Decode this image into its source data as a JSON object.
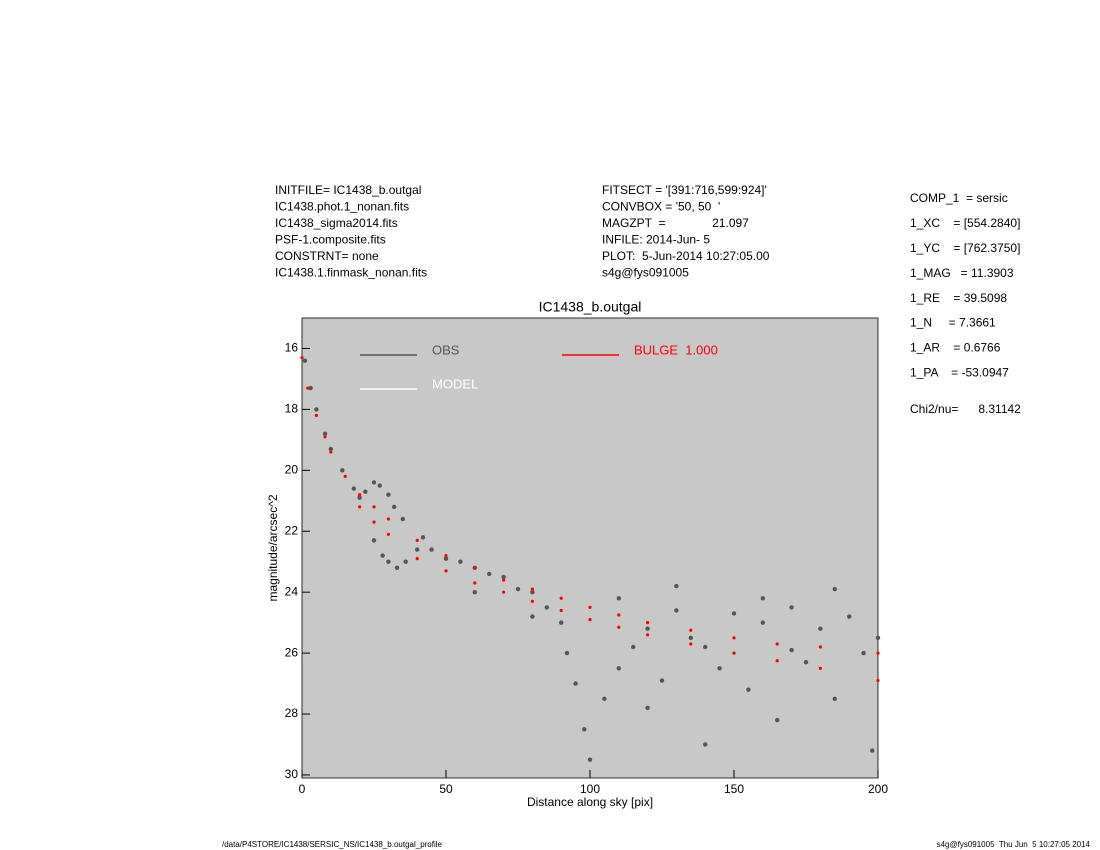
{
  "header": {
    "left": [
      "INITFILE= IC1438_b.outgal",
      "IC1438.phot.1_nonan.fits",
      "IC1438_sigma2014.fits",
      "PSF-1.composite.fits",
      "CONSTRNT= none",
      "IC1438.1.finmask_nonan.fits"
    ],
    "middle": [
      "FITSECT = '[391:716,599:924]'",
      "CONVBOX = '50, 50  '",
      "MAGZPT  =              21.097",
      "INFILE: 2014-Jun- 5",
      "PLOT:  5-Jun-2014 10:27:05.00",
      "s4g@fys091005"
    ],
    "params": [
      "COMP_1  = sersic",
      "1_XC    = [554.2840]",
      "1_YC    = [762.3750]",
      "1_MAG   = 11.3903",
      "1_RE    = 39.5098",
      "1_N     = 7.3661",
      "1_AR    = 0.6766",
      "1_PA    = -53.0947"
    ],
    "chi2": "Chi2/nu=      8.31142"
  },
  "footer": {
    "left": "/data/P4STORE/IC1438/SERSIC_NS/IC1438_b.outgal_profile",
    "right": "s4g@fys091005  Thu Jun  5 10:27:05 2014"
  },
  "chart_data": {
    "type": "scatter",
    "title": "IC1438_b.outgal",
    "xlabel": "Distance along sky [pix]",
    "ylabel": "magnitude/arcsec^2",
    "xlim": [
      0,
      200
    ],
    "ylim": [
      30.1,
      15
    ],
    "xticks": [
      0,
      50,
      100,
      150,
      200
    ],
    "yticks": [
      16,
      18,
      20,
      22,
      24,
      26,
      28,
      30
    ],
    "background": "#c8c8c8",
    "series": [
      {
        "name": "OBS",
        "color": "#555555",
        "x": [
          1,
          3,
          5,
          8,
          10,
          14,
          18,
          20,
          22,
          25,
          27,
          30,
          32,
          35,
          25,
          28,
          30,
          33,
          36,
          40,
          42,
          45,
          50,
          55,
          60,
          65,
          70,
          75,
          80,
          85,
          90,
          92,
          95,
          98,
          100,
          105,
          110,
          115,
          120,
          125,
          130,
          135,
          140,
          145,
          150,
          155,
          160,
          165,
          170,
          175,
          180,
          185,
          190,
          195,
          198,
          200,
          60,
          80,
          110,
          130,
          160,
          185,
          120,
          140,
          170
        ],
        "y": [
          16.4,
          17.3,
          18.0,
          18.8,
          19.3,
          20.0,
          20.6,
          20.9,
          20.7,
          20.4,
          20.5,
          20.8,
          21.2,
          21.6,
          22.3,
          22.8,
          23.0,
          23.2,
          23.0,
          22.6,
          22.2,
          22.6,
          22.9,
          23.0,
          23.2,
          23.4,
          23.5,
          23.9,
          24.0,
          24.5,
          25.0,
          26.0,
          27.0,
          28.5,
          29.5,
          27.5,
          26.5,
          25.8,
          27.8,
          26.9,
          24.6,
          25.5,
          29.0,
          26.5,
          24.7,
          27.2,
          25.0,
          28.2,
          24.5,
          26.3,
          25.2,
          27.5,
          24.8,
          26.0,
          29.2,
          25.5,
          24.0,
          24.8,
          24.2,
          23.8,
          24.2,
          23.9,
          25.2,
          25.8,
          25.9
        ]
      },
      {
        "name": "MODEL",
        "color": "#ffffff",
        "x": [],
        "y": []
      },
      {
        "name": "BULGE  1.000",
        "color": "#ff0000",
        "x": [
          0,
          2,
          5,
          8,
          10,
          15,
          20,
          25,
          30,
          40,
          50,
          60,
          70,
          80,
          90,
          100,
          110,
          120,
          135,
          150,
          165,
          180,
          200,
          20,
          25,
          30,
          40,
          50,
          60,
          70,
          80,
          90,
          100,
          110,
          120,
          135,
          150,
          165,
          180,
          200
        ],
        "y": [
          16.3,
          17.3,
          18.2,
          18.9,
          19.4,
          20.2,
          20.8,
          21.2,
          21.6,
          22.3,
          22.8,
          23.2,
          23.6,
          23.9,
          24.2,
          24.5,
          24.75,
          25.0,
          25.25,
          25.5,
          25.7,
          25.8,
          26.0,
          21.2,
          21.7,
          22.1,
          22.9,
          23.3,
          23.7,
          24.0,
          24.3,
          24.6,
          24.9,
          25.15,
          25.4,
          25.7,
          26.0,
          26.25,
          26.5,
          26.9
        ]
      }
    ]
  }
}
